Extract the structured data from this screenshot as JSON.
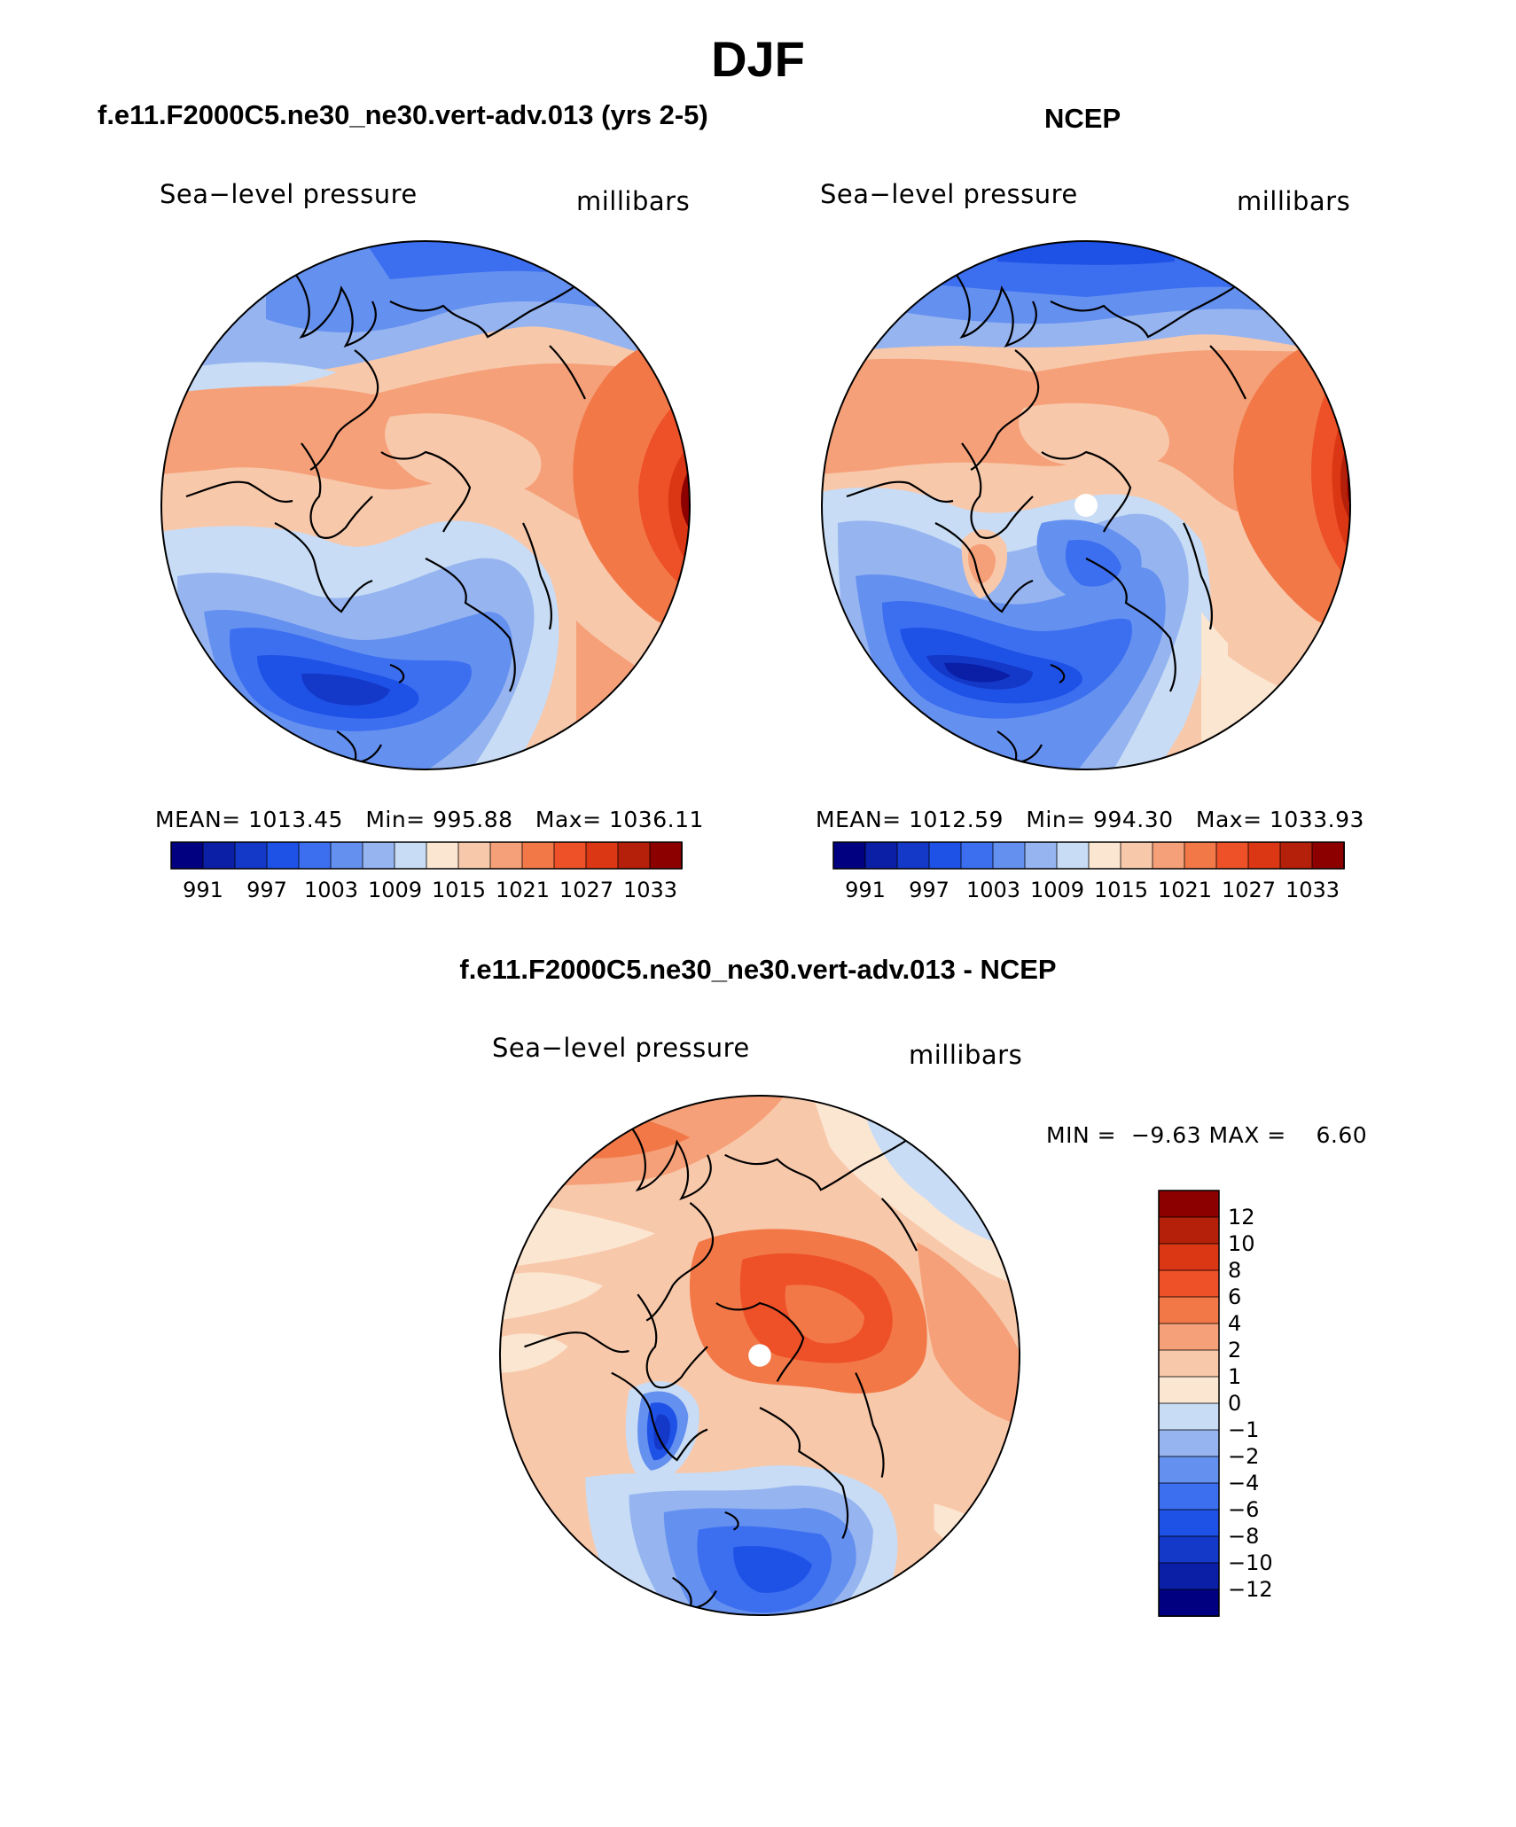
{
  "title": "DJF",
  "palettes": {
    "abs": [
      "#000080",
      "#0a1fa6",
      "#1438c8",
      "#1e52e6",
      "#3c6ef0",
      "#6490f0",
      "#96b4f0",
      "#c8dcf5",
      "#fbe6d2",
      "#f8c8aa",
      "#f5a078",
      "#f27848",
      "#ee5028",
      "#dc3714",
      "#b4200a",
      "#8c0000"
    ],
    "diff": [
      "#000080",
      "#0a1fa6",
      "#1438c8",
      "#1e52e6",
      "#3c6ef0",
      "#6490f0",
      "#96b4f0",
      "#c8dcf5",
      "#fbe6d2",
      "#f8c8aa",
      "#f5a078",
      "#f27848",
      "#ee5028",
      "#dc3714",
      "#b4200a",
      "#8c0000"
    ]
  },
  "panels": [
    {
      "title": "f.e11.F2000C5.ne30_ne30.vert-adv.013 (yrs 2-5)",
      "left_label": "Sea−level pressure",
      "right_label": "millibars",
      "stats": {
        "mean_label": "MEAN=",
        "mean": "1013.45",
        "min_label": "Min=",
        "min": "995.88",
        "max_label": "Max=",
        "max": "1036.11"
      },
      "colorbar_ticks": [
        "991",
        "997",
        "1003",
        "1009",
        "1015",
        "1021",
        "1027",
        "1033"
      ]
    },
    {
      "title": "NCEP",
      "left_label": "Sea−level pressure",
      "right_label": "millibars",
      "stats": {
        "mean_label": "MEAN=",
        "mean": "1012.59",
        "min_label": "Min=",
        "min": "994.30",
        "max_label": "Max=",
        "max": "1033.93"
      },
      "colorbar_ticks": [
        "991",
        "997",
        "1003",
        "1009",
        "1015",
        "1021",
        "1027",
        "1033"
      ]
    },
    {
      "title": "f.e11.F2000C5.ne30_ne30.vert-adv.013 - NCEP",
      "left_label": "Sea−level pressure",
      "right_label": "millibars",
      "stats": {
        "min_label": "MIN =",
        "min": "−9.63",
        "max_label": "MAX =",
        "max": "6.60"
      },
      "colorbar_ticks": [
        "12",
        "10",
        "8",
        "6",
        "4",
        "2",
        "1",
        "0",
        "−1",
        "−2",
        "−4",
        "−6",
        "−8",
        "−10",
        "−12"
      ]
    }
  ]
}
